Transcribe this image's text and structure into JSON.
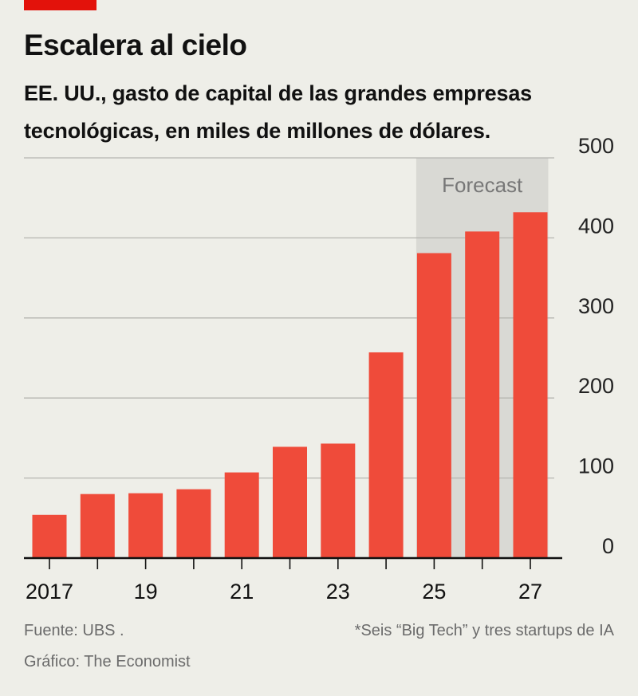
{
  "header": {
    "title": "Escalera al cielo",
    "subtitle": "EE. UU., gasto de capital de las grandes empresas tecnológicas, en miles de millones de dólares."
  },
  "footer": {
    "source": "Fuente: UBS .",
    "credit": "Gráfico: The Economist",
    "note": "*Seis “Big Tech” y tres startups de IA"
  },
  "colors": {
    "accent": "#e3120b",
    "bar": "#ef4b3a",
    "forecast_band": "#d9d9d4",
    "background": "#eeeee8"
  },
  "chart_data": {
    "type": "bar",
    "title": "Escalera al cielo",
    "subtitle": "EE. UU., gasto de capital de las grandes empresas tecnológicas, en miles de millones de dólares.",
    "categories": [
      "2017",
      "2018",
      "2019",
      "2020",
      "2021",
      "2022",
      "2023",
      "2024",
      "2025",
      "2026",
      "2027"
    ],
    "x_tick_labels": [
      "2017",
      "",
      "19",
      "",
      "21",
      "",
      "23",
      "",
      "25",
      "",
      "27"
    ],
    "values": [
      54,
      80,
      81,
      86,
      107,
      139,
      143,
      257,
      381,
      408,
      432
    ],
    "ylim": [
      0,
      500
    ],
    "yticks": [
      0,
      100,
      200,
      300,
      400,
      500
    ],
    "y_axis_side": "right",
    "grid": true,
    "forecast": {
      "label": "Forecast",
      "from": "2025",
      "to": "2027"
    },
    "xlabel": "",
    "ylabel": ""
  }
}
